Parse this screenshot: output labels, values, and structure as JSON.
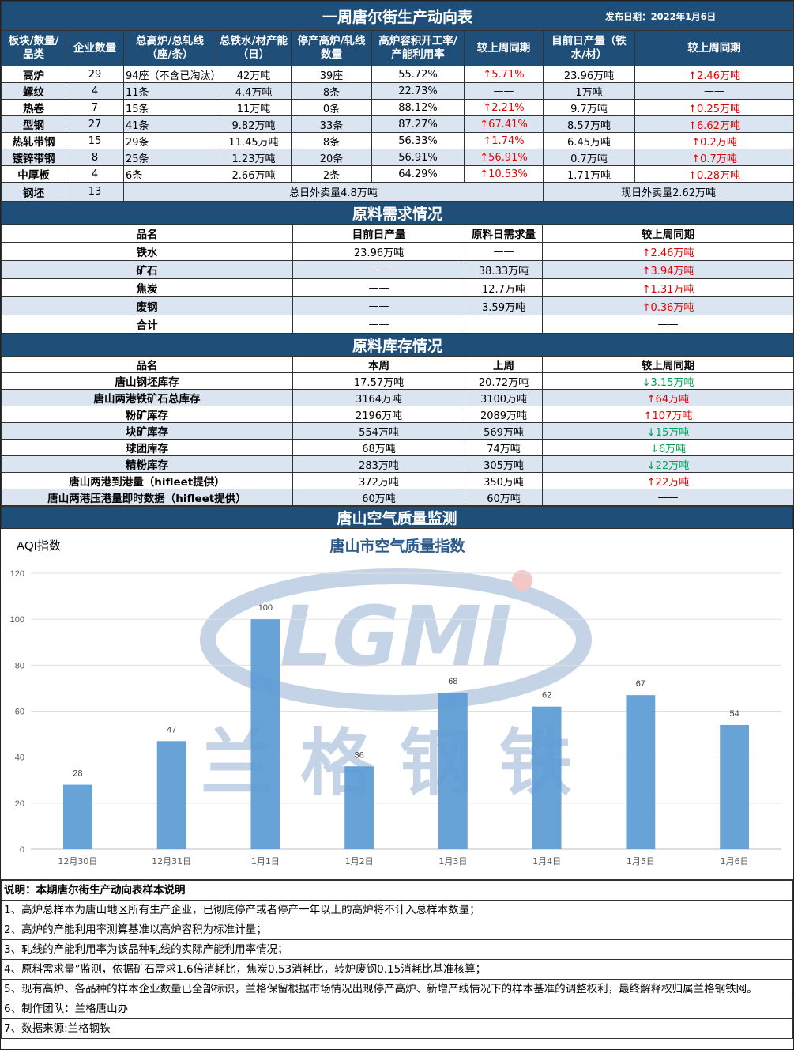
{
  "header": {
    "title": "一周唐尔街生产动向表",
    "publish_date": "发布日期：2022年1月6日"
  },
  "production": {
    "columns": [
      "板块/数量/品类",
      "企业数量",
      "总高炉/总轧线（座/条）",
      "总铁水/材产能（日）",
      "停产高炉/轧线数量",
      "高炉容积开工率/产能利用率",
      "较上周同期",
      "目前日产量（铁水/材）",
      "较上周同期"
    ],
    "rows": [
      [
        "高炉",
        "29",
        "94座（不含已淘汰）",
        "42万吨",
        "39座",
        "55.72%",
        "↑5.71%",
        "23.96万吨",
        "↑2.46万吨"
      ],
      [
        "螺纹",
        "4",
        "11条",
        "4.4万吨",
        "8条",
        "22.73%",
        "——",
        "1万吨",
        "——"
      ],
      [
        "热卷",
        "7",
        "15条",
        "11万吨",
        "0条",
        "88.12%",
        "↑2.21%",
        "9.7万吨",
        "↑0.25万吨"
      ],
      [
        "型钢",
        "27",
        "41条",
        "9.82万吨",
        "33条",
        "87.27%",
        "↑67.41%",
        "8.57万吨",
        "↑6.62万吨"
      ],
      [
        "热轧带钢",
        "15",
        "29条",
        "11.45万吨",
        "8条",
        "56.33%",
        "↑1.74%",
        "6.45万吨",
        "↑0.2万吨"
      ],
      [
        "镀锌带钢",
        "8",
        "25条",
        "1.23万吨",
        "20条",
        "56.91%",
        "↑56.91%",
        "0.7万吨",
        "↑0.7万吨"
      ],
      [
        "中厚板",
        "4",
        "6条",
        "2.66万吨",
        "2条",
        "64.29%",
        "↑10.53%",
        "1.71万吨",
        "↑0.28万吨"
      ]
    ],
    "billet": {
      "name": "钢坯",
      "count": "13",
      "outbound_total": "总日外卖量4.8万吨",
      "outbound_now": "现日外卖量2.62万吨"
    }
  },
  "raw_demand": {
    "title": "原料需求情况",
    "columns": [
      "品名",
      "目前日产量",
      "原料日需求量",
      "较上周同期"
    ],
    "rows": [
      [
        "铁水",
        "23.96万吨",
        "——",
        "↑2.46万吨"
      ],
      [
        "矿石",
        "——",
        "38.33万吨",
        "↑3.94万吨"
      ],
      [
        "焦炭",
        "——",
        "12.7万吨",
        "↑1.31万吨"
      ],
      [
        "废钢",
        "——",
        "3.59万吨",
        "↑0.36万吨"
      ],
      [
        "合计",
        "——",
        "",
        "——"
      ]
    ]
  },
  "raw_inventory": {
    "title": "原料库存情况",
    "columns": [
      "品名",
      "本周",
      "上周",
      "较上周同期"
    ],
    "rows": [
      [
        "唐山钢坯库存",
        "17.57万吨",
        "20.72万吨",
        "↓3.15万吨"
      ],
      [
        "唐山两港铁矿石总库存",
        "3164万吨",
        "3100万吨",
        "↑64万吨"
      ],
      [
        "粉矿库存",
        "2196万吨",
        "2089万吨",
        "↑107万吨"
      ],
      [
        "块矿库存",
        "554万吨",
        "569万吨",
        "↓15万吨"
      ],
      [
        "球团库存",
        "68万吨",
        "74万吨",
        "↓6万吨"
      ],
      [
        "精粉库存",
        "283万吨",
        "305万吨",
        "↓22万吨"
      ],
      [
        "唐山两港到港量（hifleet提供）",
        "372万吨",
        "350万吨",
        "↑22万吨"
      ],
      [
        "唐山两港压港量即时数据（hifleet提供）",
        "60万吨",
        "60万吨",
        "——"
      ]
    ]
  },
  "air": {
    "band_title": "唐山空气质量监测",
    "watermark_logo": "LGMI",
    "watermark_text": "兰格钢铁"
  },
  "chart_data": {
    "type": "bar",
    "title": "唐山市空气质量指数",
    "ylabel": "AQI指数",
    "categories": [
      "12月30日",
      "12月31日",
      "1月1日",
      "1月2日",
      "1月3日",
      "1月4日",
      "1月5日",
      "1月6日"
    ],
    "values": [
      28,
      47,
      100,
      36,
      68,
      62,
      67,
      54
    ],
    "ylim": [
      0,
      120
    ],
    "yticks": [
      0,
      20,
      40,
      60,
      80,
      100,
      120
    ],
    "grid": true,
    "bar_color": "#5b9bd5"
  },
  "notes": [
    "说明：本期唐尔街生产动向表样本说明",
    "1、高炉总样本为唐山地区所有生产企业，已彻底停产或者停产一年以上的高炉将不计入总样本数量；",
    "2、高炉的产能利用率测算基准以高炉容积为标准计量；",
    "3、轧线的产能利用率为该品种轧线的实际产能利用率情况；",
    "4、原料需求量”监测，依据矿石需求1.6倍消耗比，焦炭0.53消耗比，转炉废钢0.15消耗比基准核算；",
    "5、现有高炉、各品种的样本企业数量已全部标识，兰格保留根据市场情况出现停产高炉、新增产线情况下的样本基准的调整权利，最终解释权归属兰格钢铁网。",
    "6、制作团队：兰格唐山办",
    "7、数据来源:兰格钢铁"
  ]
}
